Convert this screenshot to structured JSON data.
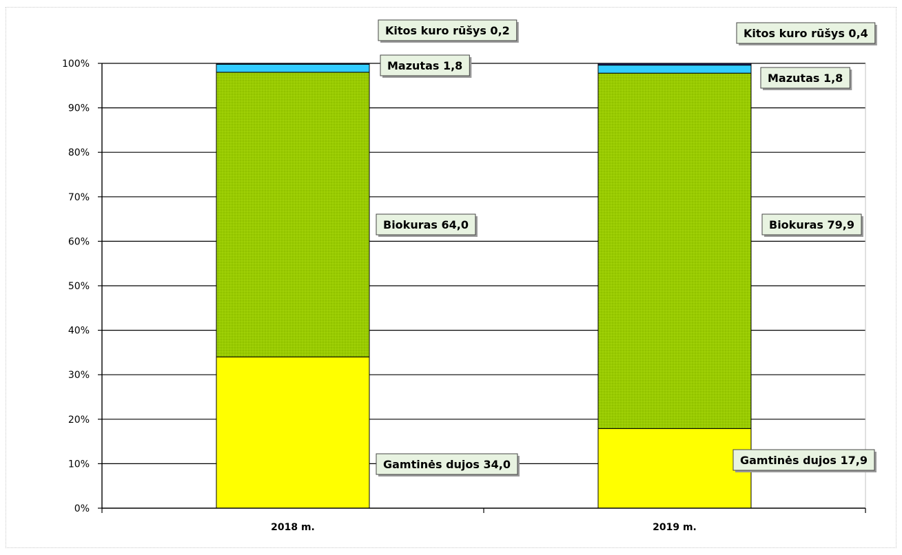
{
  "chart_data": {
    "type": "bar",
    "stacked": true,
    "percent": true,
    "categories": [
      "2018 m.",
      "2019 m."
    ],
    "ylim": [
      0,
      100
    ],
    "yticks": [
      "0%",
      "10%",
      "20%",
      "30%",
      "40%",
      "50%",
      "60%",
      "70%",
      "80%",
      "90%",
      "100%"
    ],
    "grid": true,
    "series": [
      {
        "name": "Gamtinės dujos",
        "values": [
          34.0,
          17.9
        ],
        "color": "#ffff00",
        "labels": [
          "Gamtinės dujos 34,0",
          "Gamtinės dujos 17,9"
        ]
      },
      {
        "name": "Biokuras",
        "values": [
          64.0,
          79.9
        ],
        "color": "#99cc00",
        "labels": [
          "Biokuras 64,0",
          "Biokuras 79,9"
        ]
      },
      {
        "name": "Mazutas",
        "values": [
          1.8,
          1.8
        ],
        "color": "#33ccff",
        "labels": [
          "Mazutas 1,8",
          "Mazutas 1,8"
        ]
      },
      {
        "name": "Kitos kuro rūšys",
        "values": [
          0.2,
          0.4
        ],
        "color": "#1f1f5f",
        "labels": [
          "Kitos kuro rūšys 0,2",
          "Kitos kuro rūšys 0,4"
        ]
      }
    ]
  }
}
